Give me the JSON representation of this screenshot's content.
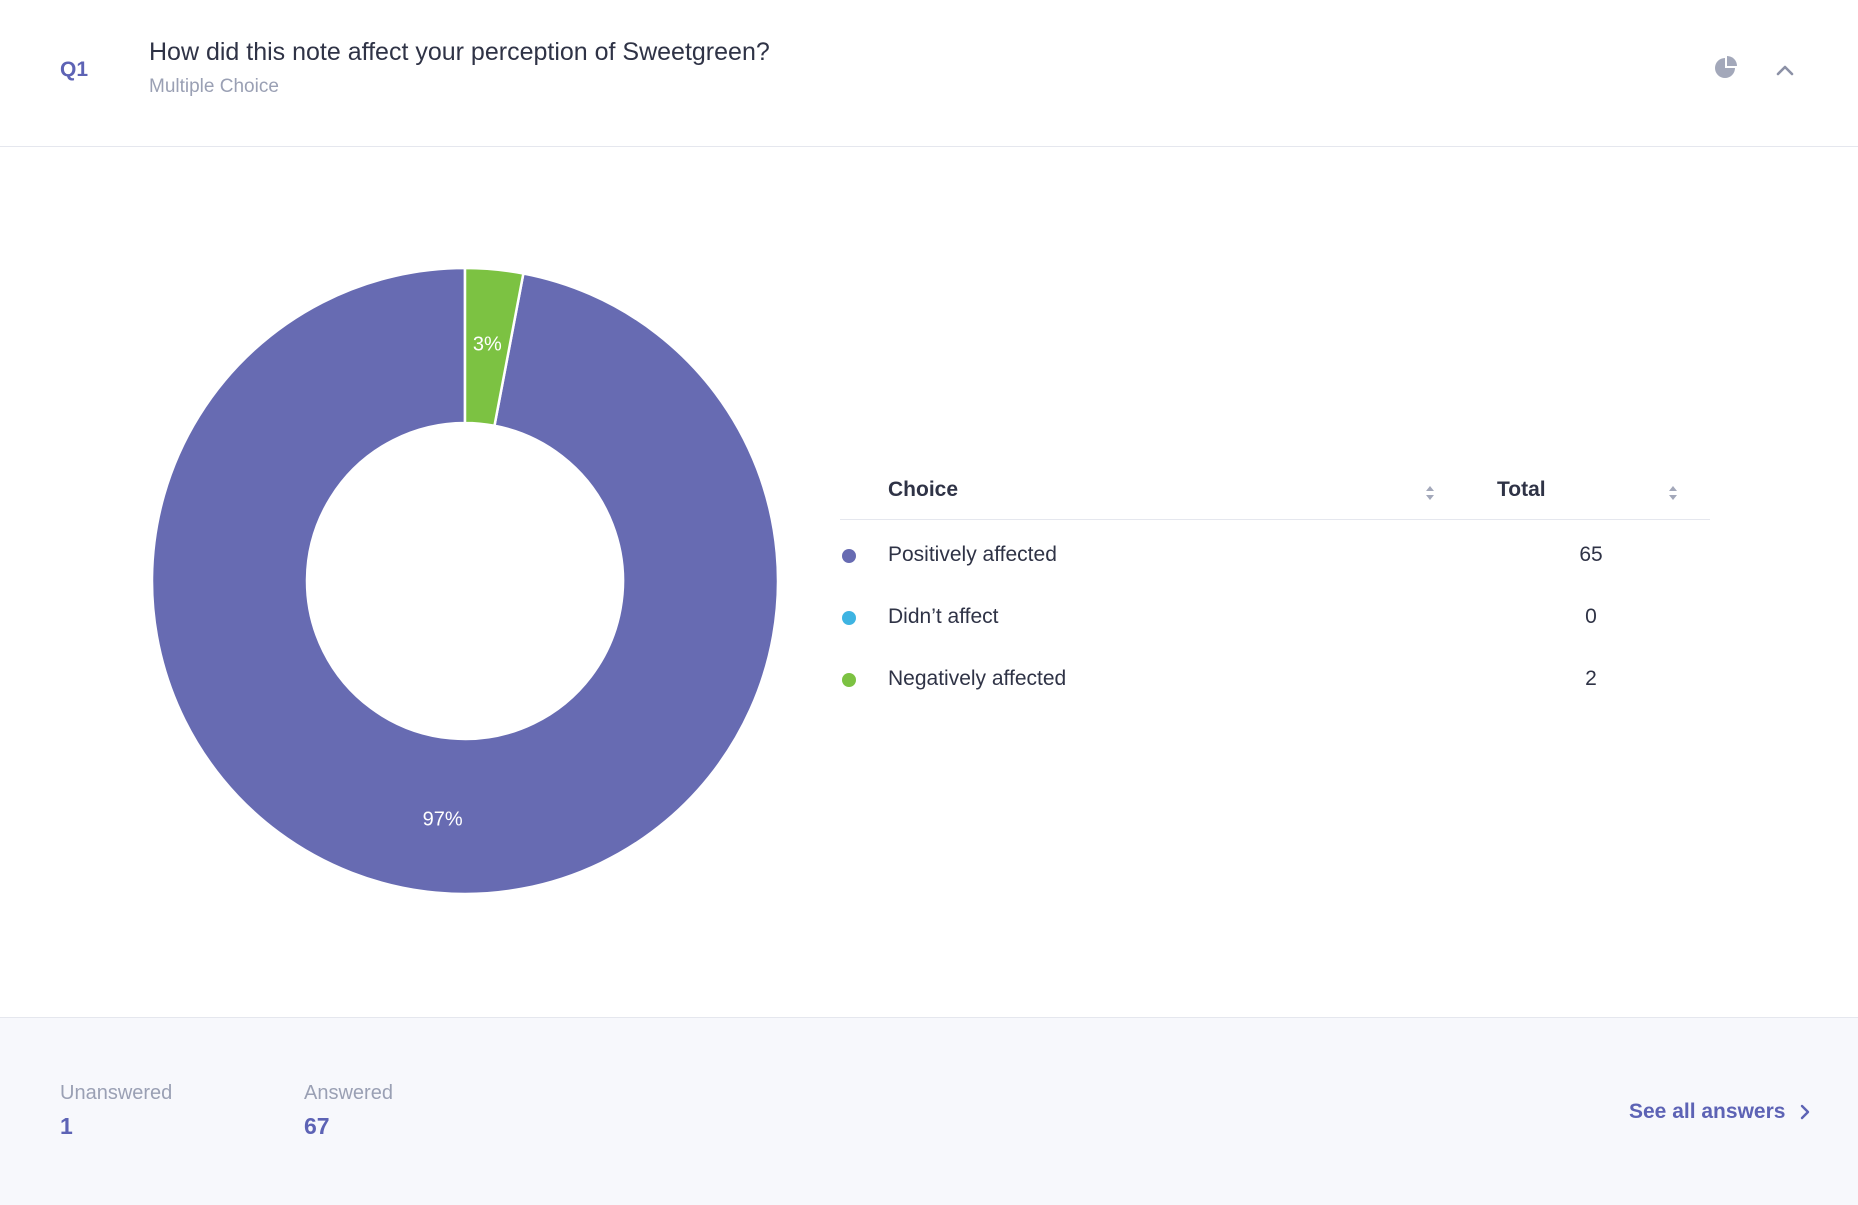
{
  "question": {
    "number": "Q1",
    "title": "How did this note affect your perception of Sweetgreen?",
    "type": "Multiple Choice"
  },
  "header_icons": {
    "chart_toggle": "pie-chart-icon",
    "collapse": "chevron-up-icon"
  },
  "table": {
    "headers": {
      "choice": "Choice",
      "total": "Total"
    },
    "rows": [
      {
        "label": "Positively affected",
        "total": "65",
        "color": "#676bb2"
      },
      {
        "label": "Didn’t affect",
        "total": "0",
        "color": "#3eb4e2"
      },
      {
        "label": "Negatively affected",
        "total": "2",
        "color": "#7cc242"
      }
    ]
  },
  "chart_data": {
    "type": "pie",
    "categories": [
      "Positively affected",
      "Didn’t affect",
      "Negatively affected"
    ],
    "values": [
      65,
      0,
      2
    ],
    "colors": [
      "#676bb2",
      "#3eb4e2",
      "#7cc242"
    ],
    "data_labels": [
      "97%",
      "",
      "3%"
    ],
    "donut": true
  },
  "footer": {
    "unanswered": {
      "label": "Unanswered",
      "value": "1"
    },
    "answered": {
      "label": "Answered",
      "value": "67"
    },
    "see_all_label": "See all answers"
  }
}
